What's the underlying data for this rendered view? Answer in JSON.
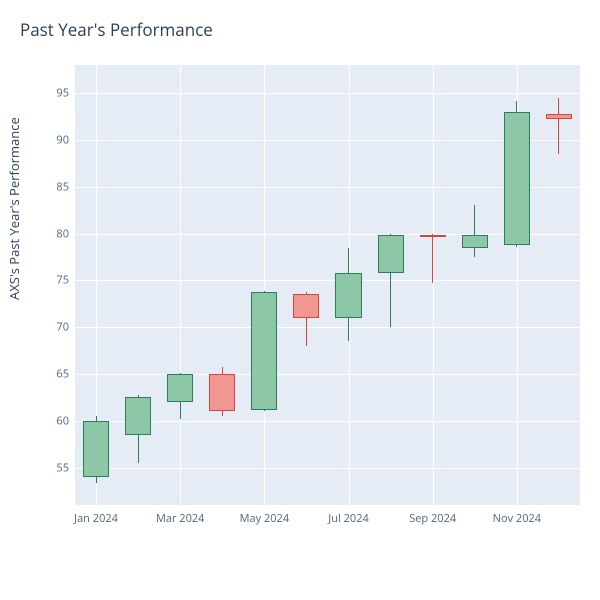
{
  "title": "Past Year's Performance",
  "ylabel": "AXS's Past Year's Performance",
  "chart": {
    "type": "candlestick",
    "background_color": "#e5ecf6",
    "grid_color": "#ffffff",
    "ylim": [
      51,
      98
    ],
    "yticks": [
      55,
      60,
      65,
      70,
      75,
      80,
      85,
      90,
      95
    ],
    "xticks": [
      {
        "i": 0,
        "label": "Jan 2024"
      },
      {
        "i": 2,
        "label": "Mar 2024"
      },
      {
        "i": 4,
        "label": "May 2024"
      },
      {
        "i": 6,
        "label": "Jul 2024"
      },
      {
        "i": 8,
        "label": "Sep 2024"
      },
      {
        "i": 10,
        "label": "Nov 2024"
      }
    ],
    "n": 12,
    "candle_width_ratio": 0.62,
    "colors": {
      "up_fill": "#8cc8a7",
      "up_line": "#2e7d58",
      "down_fill": "#f09791",
      "down_line": "#d6463d"
    },
    "candles": [
      {
        "open": 54.0,
        "close": 60.0,
        "low": 53.3,
        "high": 60.5
      },
      {
        "open": 58.5,
        "close": 62.5,
        "low": 55.5,
        "high": 62.7
      },
      {
        "open": 62.0,
        "close": 65.0,
        "low": 60.2,
        "high": 65.1
      },
      {
        "open": 65.0,
        "close": 61.0,
        "low": 60.5,
        "high": 65.7
      },
      {
        "open": 61.2,
        "close": 73.8,
        "low": 61.0,
        "high": 73.9
      },
      {
        "open": 73.5,
        "close": 71.0,
        "low": 68.0,
        "high": 73.7
      },
      {
        "open": 71.0,
        "close": 75.8,
        "low": 68.5,
        "high": 78.5
      },
      {
        "open": 75.8,
        "close": 79.8,
        "low": 70.0,
        "high": 79.9
      },
      {
        "open": 79.8,
        "close": 79.6,
        "low": 74.7,
        "high": 79.9
      },
      {
        "open": 78.5,
        "close": 79.8,
        "low": 77.5,
        "high": 83.0
      },
      {
        "open": 78.8,
        "close": 93.0,
        "low": 78.6,
        "high": 94.2
      },
      {
        "open": 92.8,
        "close": 92.2,
        "low": 88.5,
        "high": 94.5
      }
    ]
  }
}
